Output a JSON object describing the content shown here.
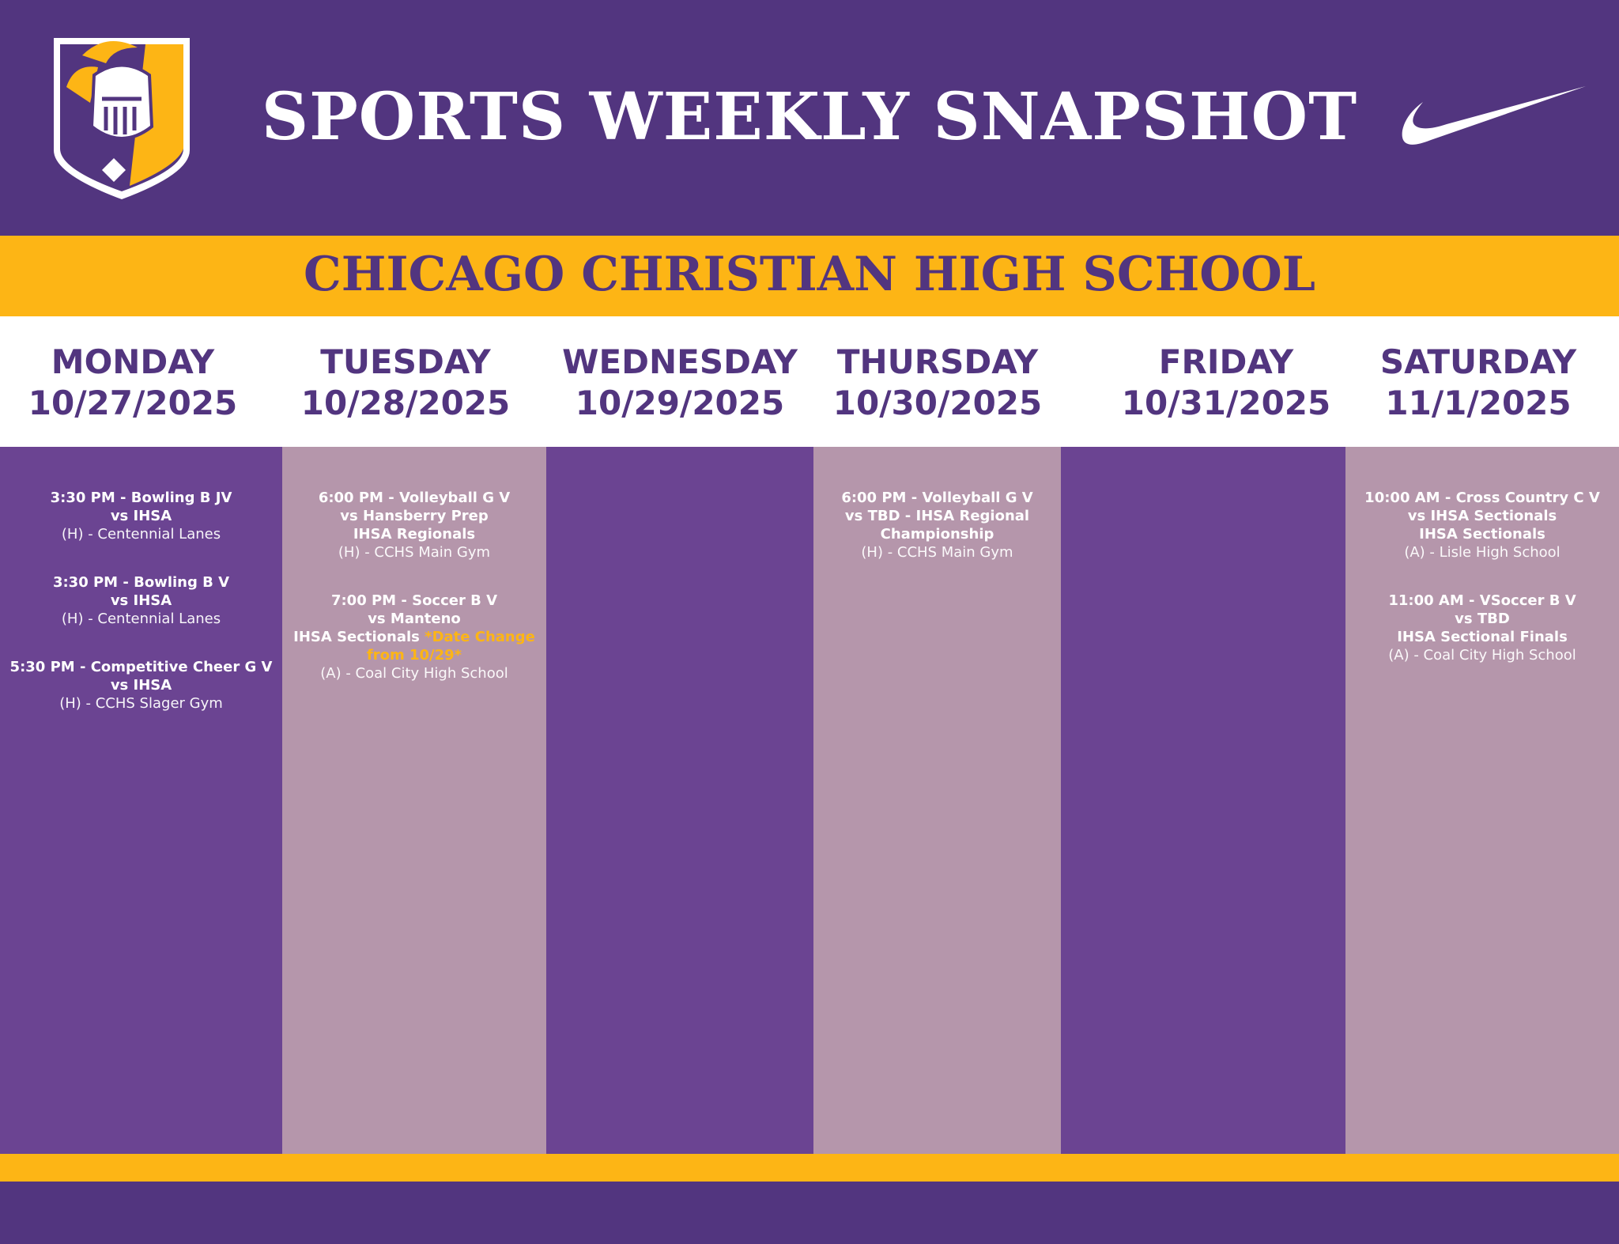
{
  "header": {
    "title": "SPORTS WEEKLY SNAPSHOT",
    "school": "CHICAGO CHRISTIAN HIGH SCHOOL"
  },
  "days": [
    {
      "name": "MONDAY",
      "date": "10/27/2025",
      "events": [
        {
          "title": "3:30 PM - Bowling B JV",
          "opponent": "vs IHSA",
          "location": "(H) - Centennial Lanes"
        },
        {
          "title": "3:30 PM - Bowling B V",
          "opponent": "vs IHSA",
          "location": "(H) - Centennial Lanes"
        },
        {
          "title": "5:30 PM - Competitive Cheer G V",
          "opponent": "vs IHSA",
          "location": "(H) - CCHS Slager Gym"
        }
      ]
    },
    {
      "name": "TUESDAY",
      "date": "10/28/2025",
      "events": [
        {
          "title": "6:00 PM - Volleyball G V",
          "opponent": "vs Hansberry Prep",
          "detail": "IHSA Regionals",
          "location": "(H) - CCHS Main Gym"
        },
        {
          "title": "7:00 PM - Soccer B V",
          "opponent": "vs Manteno",
          "detail": "IHSA Sectionals",
          "note": "*Date Change from 10/29*",
          "location": "(A) - Coal City High School"
        }
      ]
    },
    {
      "name": "WEDNESDAY",
      "date": "10/29/2025",
      "events": []
    },
    {
      "name": "THURSDAY",
      "date": "10/30/2025",
      "events": [
        {
          "title": "6:00 PM - Volleyball G V",
          "opponent": "vs TBD - IHSA Regional Championship",
          "location": "(H) - CCHS Main Gym"
        }
      ]
    },
    {
      "name": "FRIDAY",
      "date": "10/31/2025",
      "events": []
    },
    {
      "name": "SATURDAY",
      "date": "11/1/2025",
      "events": [
        {
          "title": "10:00 AM - Cross Country C V",
          "opponent": "vs IHSA Sectionals",
          "detail": "IHSA Sectionals",
          "location": "(A) - Lisle High School"
        },
        {
          "title": "11:00 AM - VSoccer B V",
          "opponent": "vs TBD",
          "detail": "IHSA Sectional Finals",
          "location": "(A) - Coal City High School"
        }
      ]
    }
  ]
}
